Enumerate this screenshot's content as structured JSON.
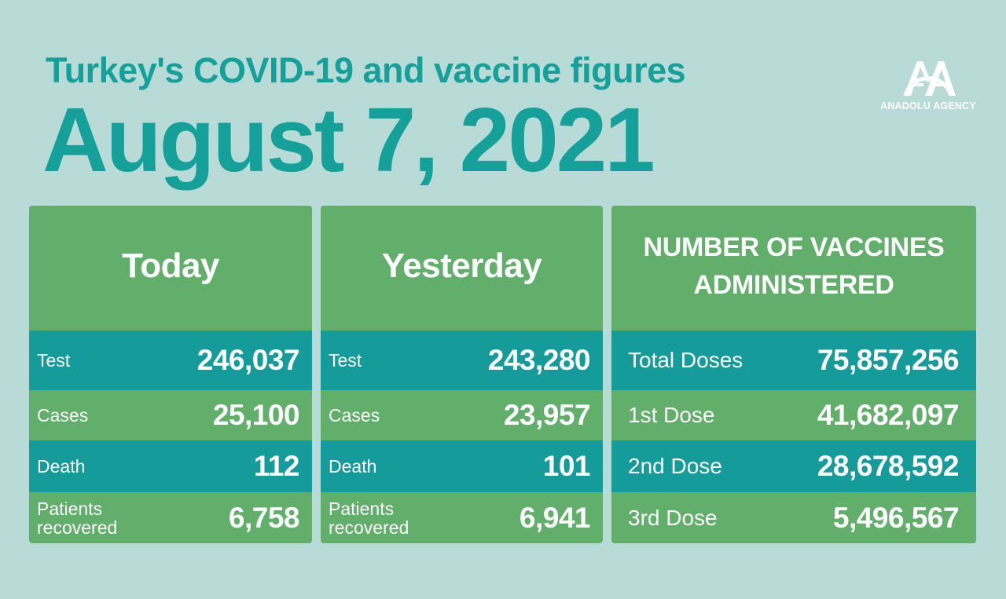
{
  "header": {
    "subtitle": "Turkey's COVID-19 and vaccine figures",
    "date": "August 7, 2021"
  },
  "logo": {
    "icon": "anadolu-agency-logo",
    "monogram": "AA",
    "name": "ANADOLU AGENCY"
  },
  "today": {
    "title": "Today",
    "rows": [
      {
        "label": "Test",
        "value": "246,037"
      },
      {
        "label": "Cases",
        "value": "25,100"
      },
      {
        "label": "Death",
        "value": "112"
      },
      {
        "label_line1": "Patients",
        "label_line2": "recovered",
        "value": "6,758"
      }
    ]
  },
  "yesterday": {
    "title": "Yesterday",
    "rows": [
      {
        "label": "Test",
        "value": "243,280"
      },
      {
        "label": "Cases",
        "value": "23,957"
      },
      {
        "label": "Death",
        "value": "101"
      },
      {
        "label_line1": "Patients",
        "label_line2": "recovered",
        "value": "6,941"
      }
    ]
  },
  "vaccines": {
    "title_line1": "NUMBER OF VACCINES",
    "title_line2": "ADMINISTERED",
    "rows": [
      {
        "label": "Total Doses",
        "value": "75,857,256"
      },
      {
        "label": "1st Dose",
        "value": "41,682,097"
      },
      {
        "label": "2nd Dose",
        "value": "28,678,592"
      },
      {
        "label": "3rd Dose",
        "value": "5,496,567"
      }
    ]
  },
  "colors": {
    "background": "#b9dbd8",
    "title": "#15a199",
    "green": "#61af6a",
    "teal": "#159b99",
    "text": "#ffffff"
  }
}
